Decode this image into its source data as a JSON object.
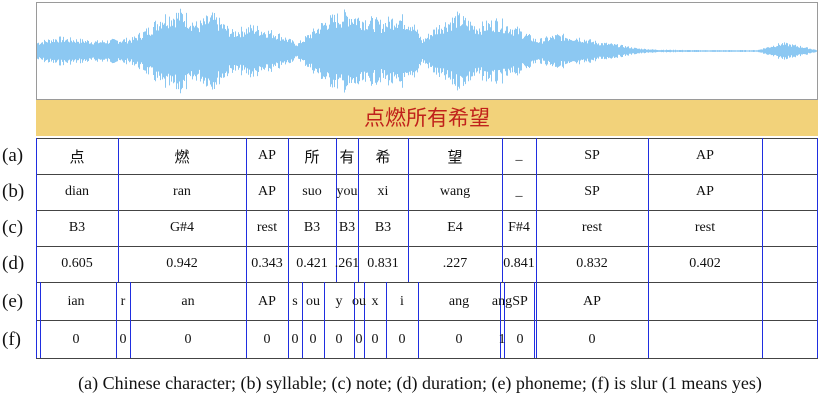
{
  "title": "点燃所有希望",
  "colors": {
    "wave": "#8cc8f2",
    "banner": "#f2d27a",
    "title_text": "#c0211b",
    "divider": "#1f2ee0"
  },
  "row_labels": [
    "(a)",
    "(b)",
    "(c)",
    "(d)",
    "(e)",
    "(f)"
  ],
  "characters": [
    "点",
    "燃",
    "AP",
    "所",
    "有",
    "希",
    "望",
    "_",
    "SP",
    "AP"
  ],
  "syllables": [
    "dian",
    "ran",
    "AP",
    "suo",
    "you",
    "xi",
    "wang",
    "_",
    "SP",
    "AP"
  ],
  "notes": [
    "B3",
    "G#4",
    "rest",
    "B3",
    "B3",
    "B3",
    "E4",
    "F#4",
    "rest",
    "rest"
  ],
  "durations": [
    "0.605",
    "0.942",
    "0.343",
    "0.421",
    ".261",
    "0.831",
    ".227",
    "0.841",
    "0.832",
    "0.402"
  ],
  "phonemes": [
    "ian",
    "r",
    "an",
    "AP",
    "s",
    "ou",
    "y",
    "ou",
    "x",
    "i",
    "ang",
    "ang",
    "SP",
    "AP"
  ],
  "is_slur": [
    "0",
    "0",
    "0",
    "0",
    "0",
    "0",
    "0",
    "0",
    "0",
    "0",
    "0",
    "1",
    "0",
    "0"
  ],
  "caption": "(a) Chinese character;  (b) syllable;  (c) note;  (d) duration;  (e) phoneme;  (f) is slur  (1 means yes)"
}
